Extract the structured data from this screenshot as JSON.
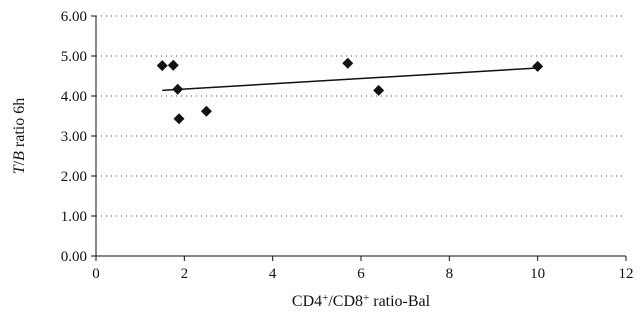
{
  "chart_data": {
    "type": "scatter",
    "xlabel": {
      "parts": [
        {
          "text": "CD4",
          "style": "normal"
        },
        {
          "text": "+",
          "style": "sup"
        },
        {
          "text": "/CD8",
          "style": "normal"
        },
        {
          "text": "+",
          "style": "sup"
        },
        {
          "text": " ratio-Bal",
          "style": "normal"
        }
      ]
    },
    "ylabel": {
      "parts": [
        {
          "text": "T",
          "style": "italic"
        },
        {
          "text": "/",
          "style": "normal"
        },
        {
          "text": "B",
          "style": "italic"
        },
        {
          "text": " ratio 6h",
          "style": "normal"
        }
      ]
    },
    "xlim": [
      0,
      12
    ],
    "ylim": [
      0,
      6
    ],
    "x_ticks": [
      0,
      2,
      4,
      6,
      8,
      10,
      12
    ],
    "x_tick_labels": [
      "0",
      "2",
      "4",
      "6",
      "8",
      "10",
      "12"
    ],
    "y_ticks": [
      0,
      1,
      2,
      3,
      4,
      5,
      6
    ],
    "y_tick_labels": [
      "0.00",
      "1.00",
      "2.00",
      "3.00",
      "4.00",
      "5.00",
      "6.00"
    ],
    "grid": "horizontal dotted",
    "marker": "diamond",
    "marker_color": "#111111",
    "series": [
      {
        "points": [
          {
            "x": 1.5,
            "y": 4.76
          },
          {
            "x": 1.75,
            "y": 4.77
          },
          {
            "x": 1.85,
            "y": 4.17
          },
          {
            "x": 1.88,
            "y": 3.43
          },
          {
            "x": 2.5,
            "y": 3.62
          },
          {
            "x": 5.7,
            "y": 4.82
          },
          {
            "x": 6.4,
            "y": 4.14
          },
          {
            "x": 10.0,
            "y": 4.74
          }
        ]
      }
    ],
    "trendline": {
      "type": "linear",
      "color": "#111111",
      "x_range": [
        1.5,
        10.0
      ],
      "y_at_range": [
        4.14,
        4.7
      ]
    }
  }
}
